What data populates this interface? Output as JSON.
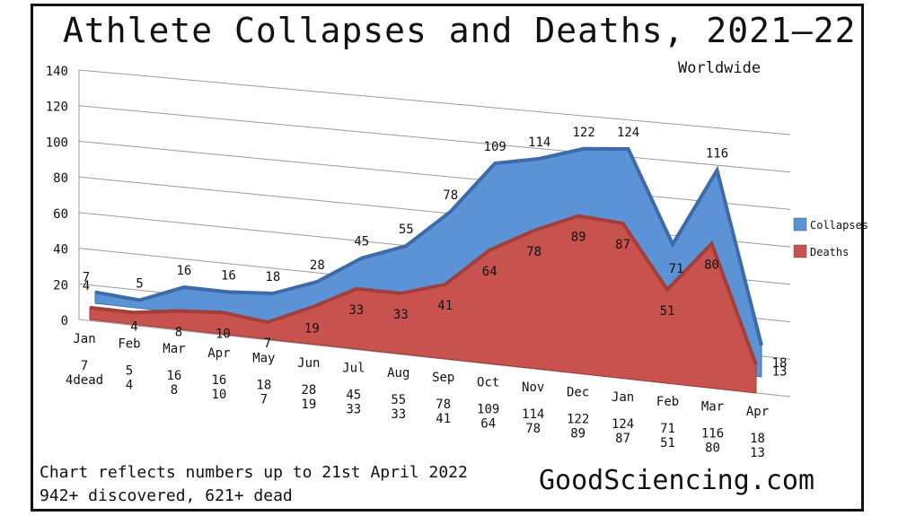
{
  "title": "Athlete Collapses and Deaths, 2021—22",
  "subtitle": "Worldwide",
  "footnote_1": "Chart reflects numbers up to 21st April 2022",
  "footnote_2": "942+ discovered, 621+ dead",
  "brand": "GoodSciencing.com",
  "colors": {
    "collapses": "#5b93d6",
    "deaths": "#c8534e",
    "frame": "#111111"
  },
  "chart_data": {
    "type": "area",
    "title": "Athlete Collapses and Deaths, 2021—22",
    "subtitle": "Worldwide",
    "categories": [
      "Jan",
      "Feb",
      "Mar",
      "Apr",
      "May",
      "Jun",
      "Jul",
      "Aug",
      "Sep",
      "Oct",
      "Nov",
      "Dec",
      "Jan",
      "Feb",
      "Mar",
      "Apr"
    ],
    "series": [
      {
        "name": "Collapses",
        "values": [
          7,
          5,
          16,
          16,
          18,
          28,
          45,
          55,
          78,
          109,
          114,
          122,
          124,
          71,
          116,
          18
        ]
      },
      {
        "name": "Deaths",
        "values": [
          4,
          4,
          8,
          10,
          7,
          19,
          33,
          33,
          41,
          64,
          78,
          89,
          87,
          51,
          80,
          13
        ]
      }
    ],
    "yticks": [
      0,
      20,
      40,
      60,
      80,
      100,
      120,
      140
    ],
    "ylim": [
      0,
      140
    ],
    "legend_position": "right",
    "table_rows": [
      [
        "7",
        "4dead"
      ],
      [
        "5",
        "4"
      ],
      [
        "16",
        "8"
      ],
      [
        "16",
        "10"
      ],
      [
        "18",
        "7"
      ],
      [
        "28",
        "19"
      ],
      [
        "45",
        "33"
      ],
      [
        "55",
        "33"
      ],
      [
        "78",
        "41"
      ],
      [
        "109",
        "64"
      ],
      [
        "114",
        "78"
      ],
      [
        "122",
        "89"
      ],
      [
        "124",
        "87"
      ],
      [
        "71",
        "51"
      ],
      [
        "116",
        "80"
      ],
      [
        "18",
        "13"
      ]
    ],
    "grid": true
  }
}
